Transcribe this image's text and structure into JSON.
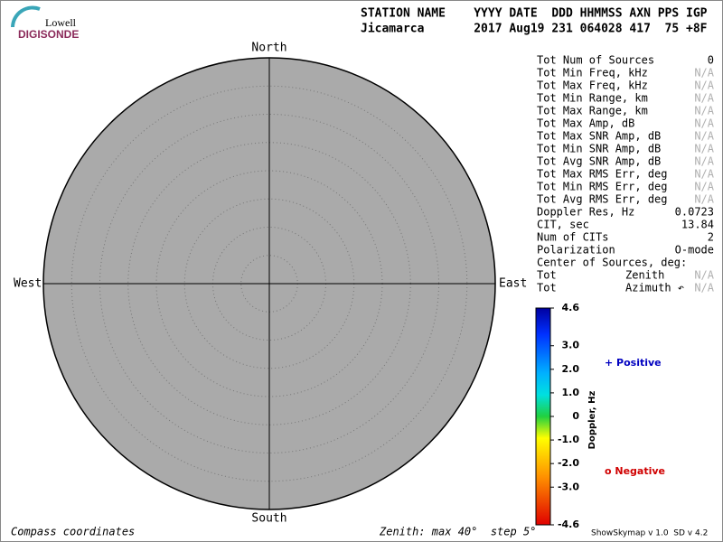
{
  "logo": {
    "top": "Lowell",
    "bottom": "DIGISONDE"
  },
  "header": {
    "columns": "STATION NAME    YYYY DATE  DDD HHMMSS AXN PPS IGP",
    "values": "Jicamarca       2017 Aug19 231 064028 417  75 +8F"
  },
  "compass": {
    "north": "North",
    "south": "South",
    "east": "East",
    "west": "West"
  },
  "stats": [
    {
      "label": "Tot Num of Sources",
      "value": "0"
    },
    {
      "label": "Tot Min Freq, kHz",
      "value": "N/A"
    },
    {
      "label": "Tot Max Freq, kHz",
      "value": "N/A"
    },
    {
      "label": "Tot Min Range, km",
      "value": "N/A"
    },
    {
      "label": "Tot Max Range, km",
      "value": "N/A"
    },
    {
      "label": "Tot Max Amp, dB",
      "value": "N/A"
    },
    {
      "label": "Tot Max SNR Amp, dB",
      "value": "N/A"
    },
    {
      "label": "Tot Min SNR Amp, dB",
      "value": "N/A"
    },
    {
      "label": "Tot Avg SNR Amp, dB",
      "value": "N/A"
    },
    {
      "label": "Tot Max RMS Err, deg",
      "value": "N/A"
    },
    {
      "label": "Tot Min RMS Err, deg",
      "value": "N/A"
    },
    {
      "label": "Tot Avg RMS Err, deg",
      "value": "N/A"
    },
    {
      "label": "Doppler Res, Hz",
      "value": "0.0723"
    },
    {
      "label": "CIT, sec",
      "value": "13.84"
    },
    {
      "label": "Num of CITs",
      "value": "2"
    },
    {
      "label": "Polarization",
      "value": "O-mode"
    }
  ],
  "center": {
    "title": "Center of Sources, deg:",
    "rows": [
      {
        "label": "Tot",
        "name": "Zenith",
        "value": "N/A"
      },
      {
        "label": "Tot",
        "name": "Azimuth ↶",
        "value": "N/A"
      }
    ]
  },
  "colorbar": {
    "title": "Doppler, Hz",
    "ticks": [
      {
        "value": 4.6,
        "label": "4.6"
      },
      {
        "value": 3,
        "label": "3.0"
      },
      {
        "value": 2,
        "label": "2.0"
      },
      {
        "value": 1,
        "label": "1.0"
      },
      0,
      {
        "value": -1,
        "label": "-1.0"
      },
      {
        "value": -2,
        "label": "-2.0"
      },
      {
        "value": -3,
        "label": "-3.0"
      },
      {
        "value": -4.6,
        "label": "-4.6"
      }
    ]
  },
  "legend": {
    "positive": "+ Positive",
    "negative": "o Negative"
  },
  "footer": {
    "left": "Compass coordinates",
    "center": "Zenith: max 40°  step 5°",
    "right": "ShowSkymap v 1.0  SD v 4.2"
  }
}
